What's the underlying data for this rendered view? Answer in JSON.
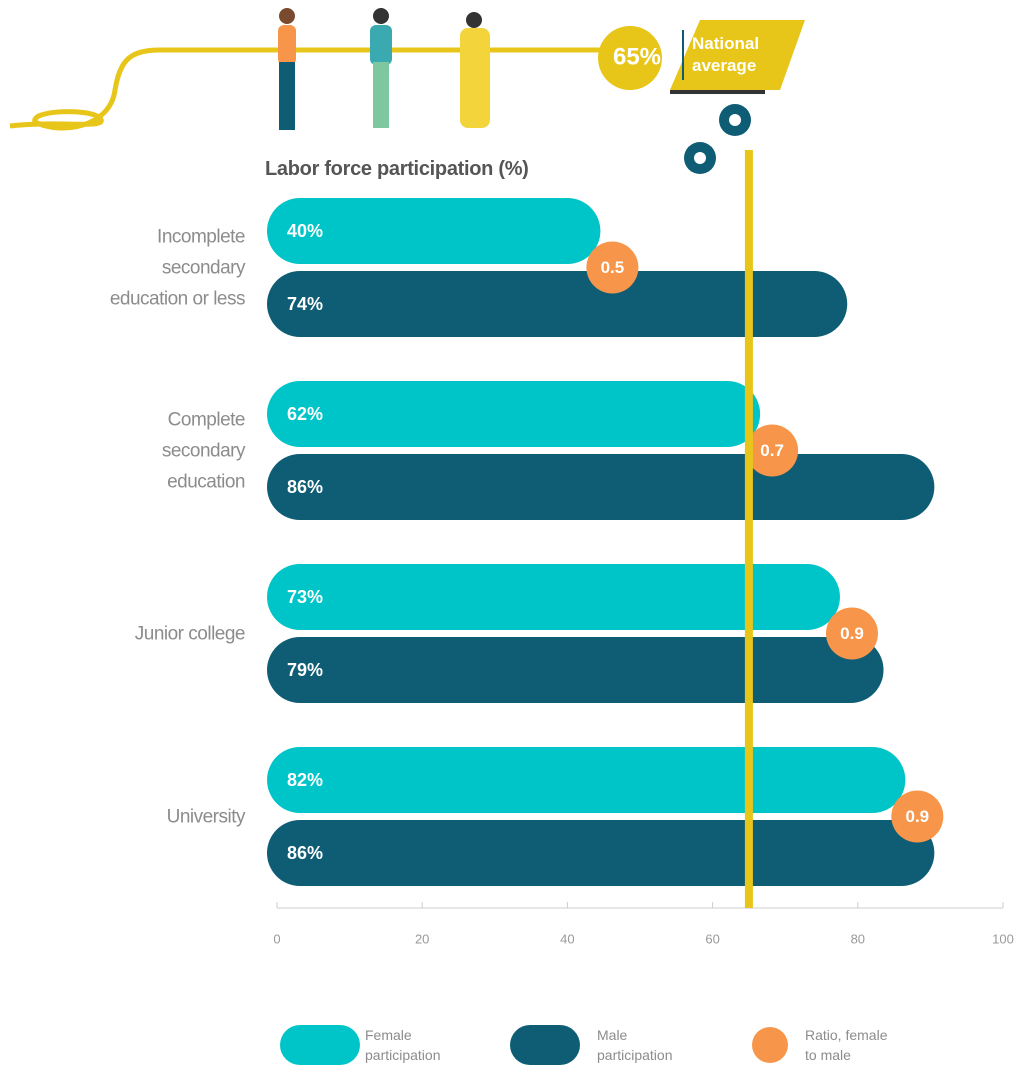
{
  "chart_data": {
    "type": "bar",
    "title": "Labor force participation (%)",
    "categories": [
      "Incomplete secondary education or less",
      "Complete secondary education",
      "Junior college",
      "University"
    ],
    "series": [
      {
        "name": "Female participation",
        "color": "#00c5c8",
        "values": [
          40,
          62,
          73,
          82
        ],
        "value_labels": [
          "40%",
          "62%",
          "73%",
          "82%"
        ]
      },
      {
        "name": "Male participation",
        "color": "#0e5d75",
        "values": [
          74,
          86,
          79,
          86
        ],
        "value_labels": [
          "74%",
          "86%",
          "79%",
          "86%"
        ]
      }
    ],
    "ratio": {
      "name": "Ratio, female to male",
      "color": "#f7964a",
      "values": [
        0.5,
        0.7,
        0.9,
        0.9
      ]
    },
    "reference": {
      "value": 65,
      "label": "65%",
      "text": "National average",
      "color": "#e8c619"
    },
    "xlim": [
      0,
      100
    ],
    "xticks": [
      0,
      20,
      40,
      60,
      80,
      100
    ]
  }
}
